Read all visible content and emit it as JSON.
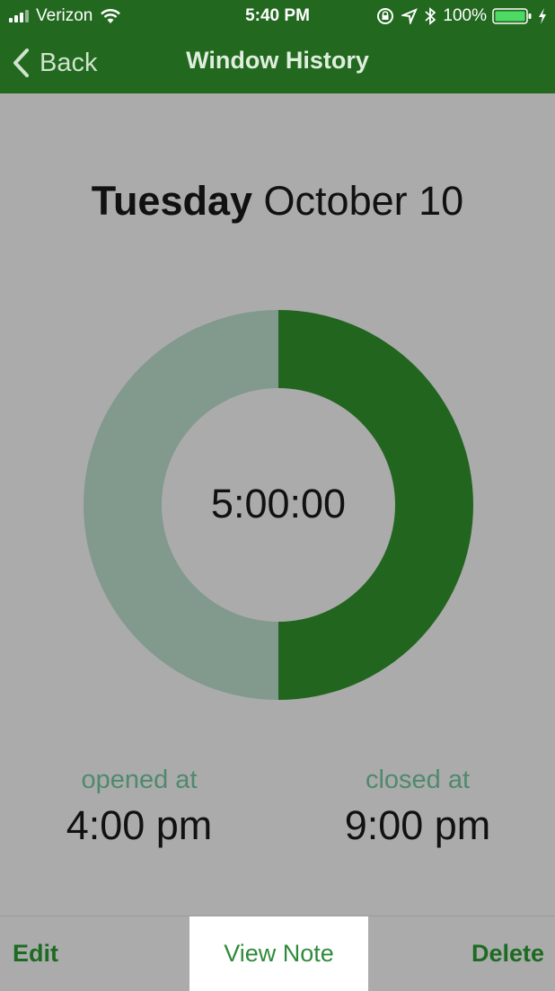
{
  "status_bar": {
    "carrier": "Verizon",
    "time": "5:40 PM",
    "battery": "100%"
  },
  "nav": {
    "back_label": "Back",
    "title": "Window History"
  },
  "date": {
    "weekday": "Tuesday",
    "date": "October 10"
  },
  "chart_data": {
    "type": "pie",
    "style": "donut",
    "center_label": "5:00:00",
    "slices": [
      {
        "value": 0.5,
        "color": "#22651f"
      },
      {
        "value": 0.5,
        "color": "#82998d"
      }
    ]
  },
  "times": {
    "opened_label": "opened at",
    "opened_value": "4:00 pm",
    "closed_label": "closed at",
    "closed_value": "9:00 pm"
  },
  "toolbar": {
    "edit_label": "Edit",
    "view_note_label": "View Note",
    "delete_label": "Delete"
  },
  "colors": {
    "brand_green": "#22681f",
    "accent_label": "#4f8a6e",
    "background": "#ababab"
  }
}
